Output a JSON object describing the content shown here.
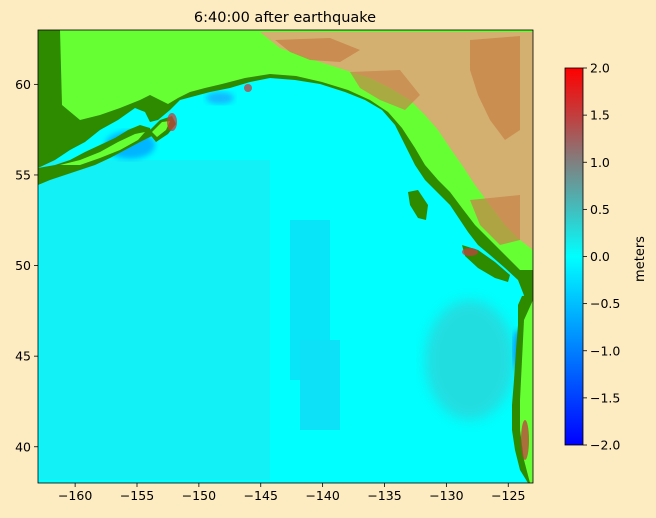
{
  "title": "6:40:00 after earthquake",
  "map": {
    "lon_range": [
      -163,
      -123
    ],
    "lat_range": [
      38,
      63
    ],
    "xticks": [
      -160,
      -155,
      -150,
      -145,
      -140,
      -135,
      -130,
      -125
    ],
    "xtick_labels": [
      "−160",
      "−155",
      "−150",
      "−145",
      "−140",
      "−135",
      "−130",
      "−125"
    ],
    "yticks": [
      40,
      45,
      50,
      55,
      60
    ],
    "ytick_labels": [
      "40",
      "45",
      "50",
      "55",
      "60"
    ],
    "ocean_color": "#00ffff",
    "land_colors": [
      "#2e8b00",
      "#66ff33",
      "#d4b070",
      "#c8864a"
    ]
  },
  "colorbar": {
    "label": "meters",
    "range": [
      -2.0,
      2.0
    ],
    "ticks": [
      2.0,
      1.5,
      1.0,
      0.5,
      0.0,
      -0.5,
      -1.0,
      -1.5,
      -2.0
    ],
    "tick_labels": [
      "2.0",
      "1.5",
      "1.0",
      "0.5",
      "0.0",
      "−0.5",
      "−1.0",
      "−1.5",
      "−2.0"
    ],
    "colors": [
      "#0000ff",
      "#007fff",
      "#00ffff",
      "#40c0c0",
      "#808080",
      "#c04040",
      "#ff0000"
    ]
  }
}
